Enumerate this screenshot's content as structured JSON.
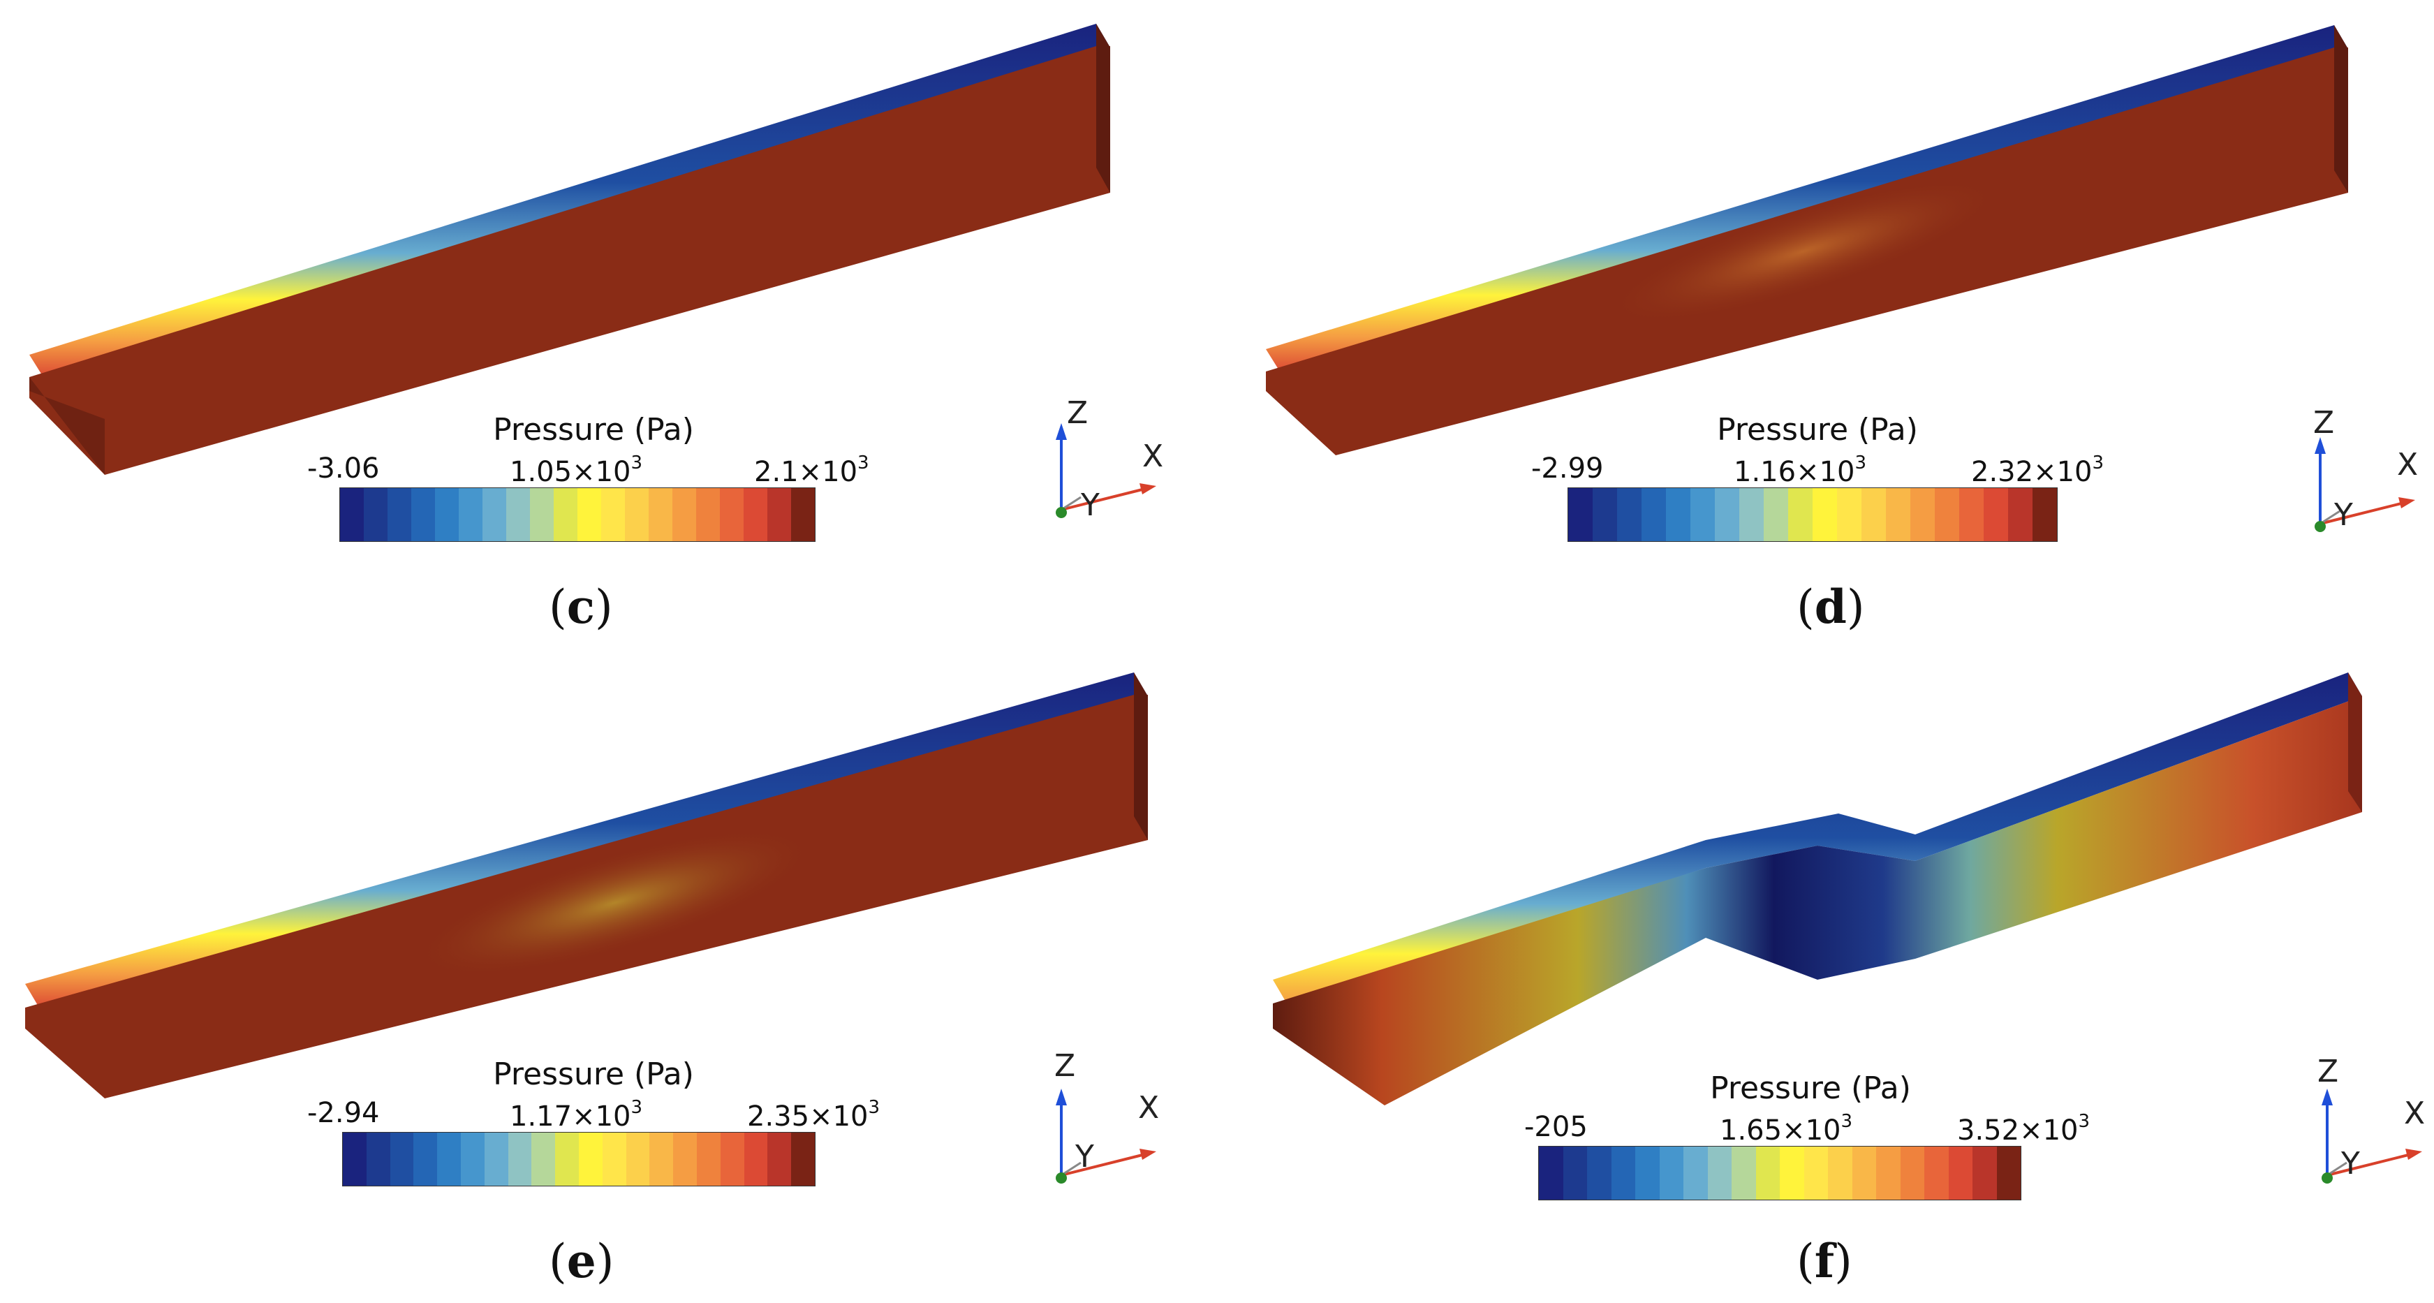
{
  "panels": [
    {
      "id": "c",
      "caption": "c",
      "legend_title": "Pressure (Pa)",
      "ticks": {
        "min": "-3.06",
        "mid": "1.05×10",
        "mid_exp": "3",
        "max": "2.1×10",
        "max_exp": "3"
      }
    },
    {
      "id": "d",
      "caption": "d",
      "legend_title": "Pressure (Pa)",
      "ticks": {
        "min": "-2.99",
        "mid": "1.16×10",
        "mid_exp": "3",
        "max": "2.32×10",
        "max_exp": "3"
      }
    },
    {
      "id": "e",
      "caption": "e",
      "legend_title": "Pressure (Pa)",
      "ticks": {
        "min": "-2.94",
        "mid": "1.17×10",
        "mid_exp": "3",
        "max": "2.35×10",
        "max_exp": "3"
      }
    },
    {
      "id": "f",
      "caption": "f",
      "legend_title": "Pressure (Pa)",
      "ticks": {
        "min": "-205",
        "mid": "1.65×10",
        "mid_exp": "3",
        "max": "3.52×10",
        "max_exp": "3"
      }
    }
  ],
  "axes_labels": {
    "z": "Z",
    "x": "X",
    "y": "Y"
  },
  "colormap": [
    "#1a237e",
    "#1d3a8f",
    "#1f4fa2",
    "#2466b5",
    "#2f7fc4",
    "#4696cd",
    "#68add0",
    "#8fc3c3",
    "#b5d79a",
    "#e0e64f",
    "#fff33b",
    "#ffe54a",
    "#fcd04b",
    "#f9b748",
    "#f59d43",
    "#ef823d",
    "#e8653a",
    "#dc4a34",
    "#b9352a",
    "#7a2315"
  ],
  "colors": {
    "beam_top": "#1b1f8a",
    "beam_front": "#8a2c16",
    "beam_side": "#5e1c10",
    "axis_z": "#1f4fd8",
    "axis_x": "#d8402a",
    "axis_y": "#2a8a2a"
  }
}
